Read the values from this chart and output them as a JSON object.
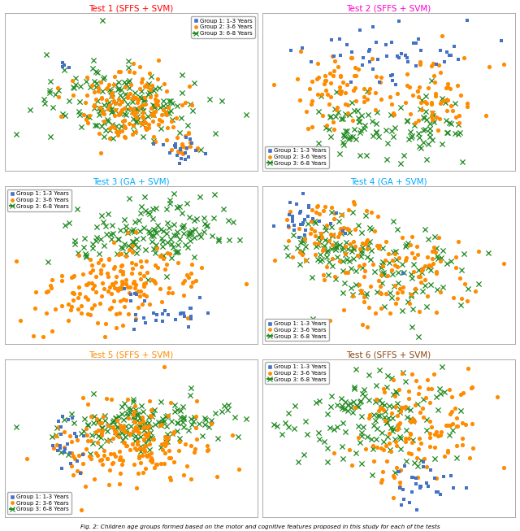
{
  "titles": [
    "Test 1 (SFFS + SVM)",
    "Test 2 (SFFS + SVM)",
    "Test 3 (GA + SVM)",
    "Test 4 (GA + SVM)",
    "Test 5 (SFFS + SVM)",
    "Test 6 (SFFS + SVM)"
  ],
  "title_colors": [
    "#ff0000",
    "#ff00cc",
    "#00aaff",
    "#00aaff",
    "#ff8c00",
    "#8b4513"
  ],
  "group_colors": [
    "#4472c4",
    "#ff8c00",
    "#228b22"
  ],
  "group_labels": [
    "Group 1: 1-3 Years",
    "Group 2: 3-6 Years",
    "Group 3: 6-8 Years"
  ],
  "group2_labels_test2": [
    "Group 1: 1-3 Years",
    "Group 2: 3-6 Years",
    "Group 3: 6-8 Years"
  ],
  "caption": "Fig. 2: Children age groups formed based on the motor and cognitive features proposed in this study for each of the tests",
  "legend_positions": [
    "upper right",
    "lower left",
    "upper left",
    "lower left",
    "lower left",
    "upper left"
  ]
}
